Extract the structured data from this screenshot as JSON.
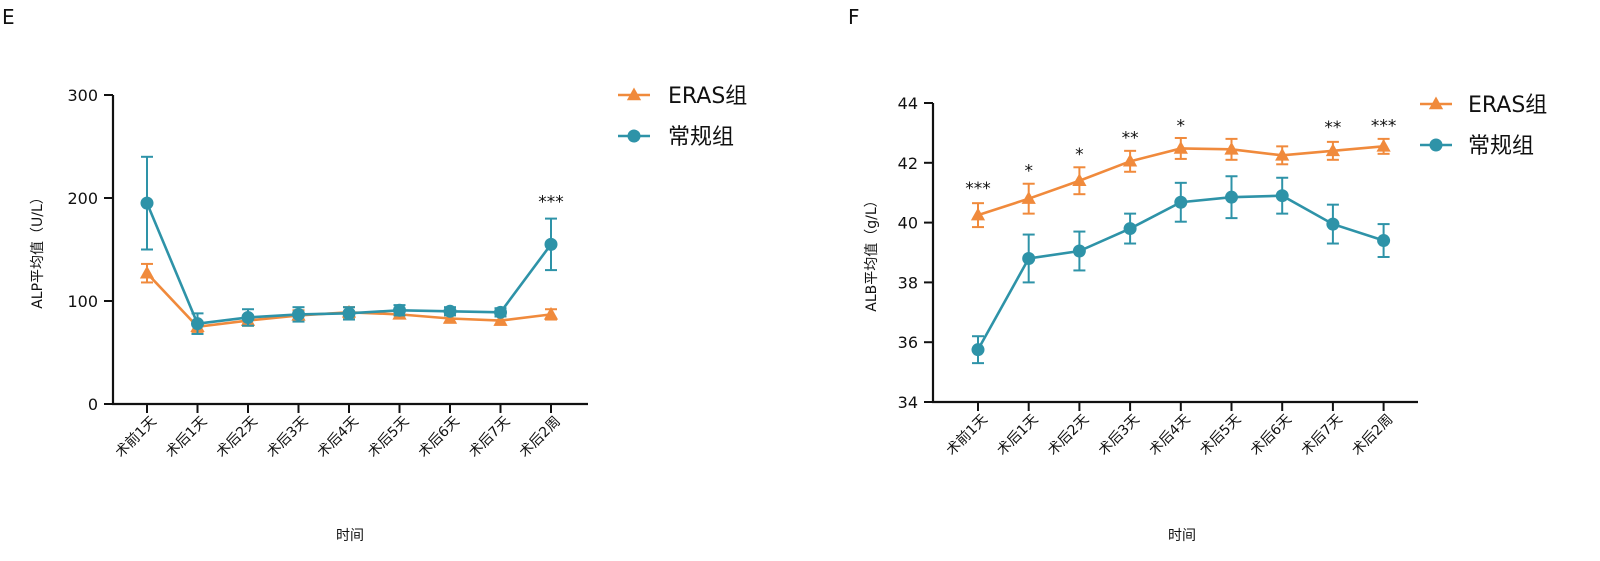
{
  "colors": {
    "eras": "#F08A3C",
    "conventional": "#2E93A8",
    "axis": "#111111"
  },
  "chart_data": [
    {
      "panel_label": "E",
      "type": "line",
      "ylabel": "ALP平均值（U/L）",
      "xlabel": "时间",
      "categories": [
        "术前1天",
        "术后1天",
        "术后2天",
        "术后3天",
        "术后4天",
        "术后5天",
        "术后6天",
        "术后7天",
        "术后2周"
      ],
      "ylim": [
        0,
        300
      ],
      "yticks": [
        0,
        100,
        200,
        300
      ],
      "ytick_labels": [
        "0",
        "100",
        "200",
        "300"
      ],
      "legend_position": "top-right",
      "series": [
        {
          "name": "ERAS组",
          "marker": "triangle",
          "color_key": "eras",
          "values": [
            127,
            75,
            81,
            86,
            89,
            87,
            83,
            81,
            87
          ],
          "errors": [
            9,
            5,
            5,
            5,
            5,
            4,
            4,
            4,
            5
          ]
        },
        {
          "name": "常规组",
          "marker": "circle",
          "color_key": "conventional",
          "values": [
            195,
            78,
            84,
            87,
            88,
            91,
            90,
            89,
            155
          ],
          "errors": [
            45,
            10,
            8,
            7,
            6,
            5,
            4,
            4,
            25
          ]
        }
      ],
      "annotations": [
        {
          "index": 8,
          "text": "***",
          "y": 191
        }
      ]
    },
    {
      "panel_label": "F",
      "type": "line",
      "ylabel": "ALB平均值（g/L）",
      "xlabel": "时间",
      "categories": [
        "术前1天",
        "术后1天",
        "术后2天",
        "术后3天",
        "术后4天",
        "术后5天",
        "术后6天",
        "术后7天",
        "术后2周"
      ],
      "ylim": [
        34,
        44
      ],
      "yticks": [
        34,
        36,
        38,
        40,
        42,
        44
      ],
      "ytick_labels": [
        "34",
        "36",
        "38",
        "40",
        "42",
        "44"
      ],
      "legend_position": "top-right",
      "series": [
        {
          "name": "ERAS组",
          "marker": "triangle",
          "color_key": "eras",
          "values": [
            40.25,
            40.8,
            41.4,
            42.05,
            42.48,
            42.45,
            42.25,
            42.4,
            42.55
          ],
          "errors": [
            0.4,
            0.5,
            0.45,
            0.35,
            0.35,
            0.35,
            0.3,
            0.3,
            0.25
          ]
        },
        {
          "name": "常规组",
          "marker": "circle",
          "color_key": "conventional",
          "values": [
            35.75,
            38.8,
            39.05,
            39.8,
            40.68,
            40.85,
            40.9,
            39.95,
            39.4
          ],
          "errors": [
            0.45,
            0.8,
            0.65,
            0.5,
            0.65,
            0.7,
            0.6,
            0.65,
            0.55
          ]
        }
      ],
      "annotations": [
        {
          "index": 0,
          "text": "***",
          "y": 40.95
        },
        {
          "index": 1,
          "text": "*",
          "y": 41.55
        },
        {
          "index": 2,
          "text": "*",
          "y": 42.1
        },
        {
          "index": 3,
          "text": "**",
          "y": 42.65
        },
        {
          "index": 4,
          "text": "*",
          "y": 43.05
        },
        {
          "index": 7,
          "text": "**",
          "y": 43.0
        },
        {
          "index": 8,
          "text": "***",
          "y": 43.05
        }
      ]
    }
  ]
}
